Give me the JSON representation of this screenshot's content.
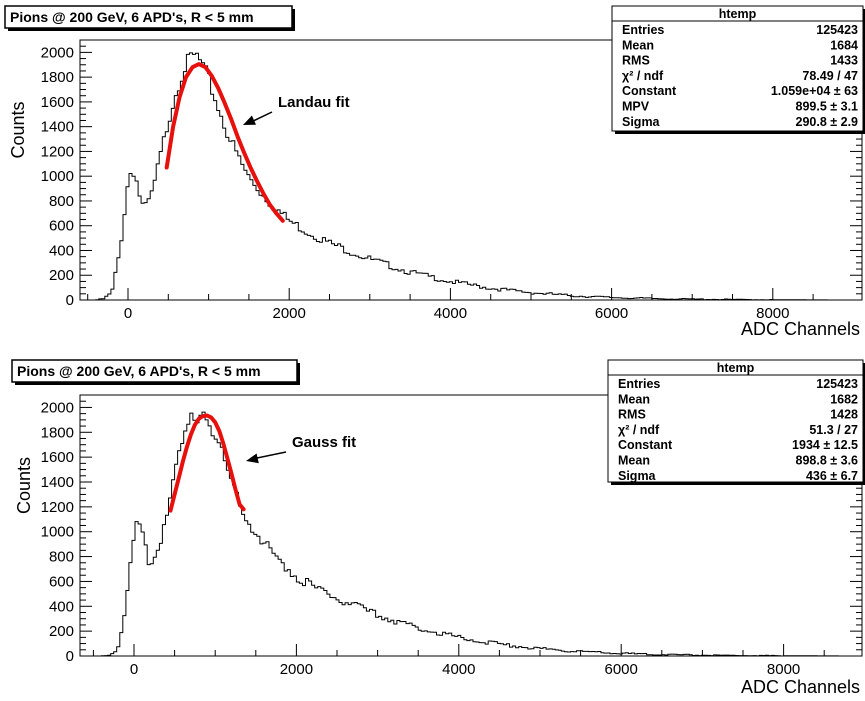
{
  "chart_data": [
    {
      "type": "histogram",
      "title": "Pions @ 200 GeV, 6 APD's, R < 5 mm",
      "xlabel": "ADC Channels",
      "ylabel": "Counts",
      "xlim": [
        -700,
        9000
      ],
      "ylim": [
        0,
        2100
      ],
      "xticks": [
        0,
        2000,
        4000,
        6000,
        8000
      ],
      "yticks": [
        0,
        200,
        400,
        600,
        800,
        1000,
        1200,
        1400,
        1600,
        1800,
        2000
      ],
      "grid": false,
      "histogram": {
        "x": [
          -400,
          -300,
          -200,
          -100,
          0,
          50,
          100,
          150,
          200,
          300,
          400,
          500,
          600,
          700,
          800,
          850,
          900,
          1000,
          1100,
          1200,
          1300,
          1400,
          1500,
          1700,
          1900,
          2000,
          2200,
          2500,
          3000,
          3500,
          4000,
          4500,
          5000,
          5500,
          6000,
          6500,
          7000,
          7500,
          8000,
          8500,
          8800
        ],
        "y": [
          0,
          10,
          60,
          400,
          950,
          1080,
          980,
          830,
          720,
          860,
          1150,
          1450,
          1700,
          1880,
          1960,
          1970,
          1920,
          1780,
          1590,
          1410,
          1250,
          1110,
          990,
          830,
          700,
          640,
          560,
          460,
          330,
          225,
          150,
          95,
          60,
          35,
          20,
          12,
          7,
          4,
          2,
          1,
          0
        ]
      },
      "fit": {
        "name": "Landau fit",
        "x": [
          480,
          560,
          640,
          720,
          800,
          880,
          960,
          1040,
          1120,
          1200,
          1280,
          1360,
          1440,
          1520,
          1600,
          1680,
          1760,
          1840,
          1920
        ],
        "y": [
          1070,
          1400,
          1640,
          1800,
          1880,
          1905,
          1880,
          1810,
          1710,
          1590,
          1460,
          1320,
          1190,
          1070,
          960,
          860,
          770,
          700,
          640
        ]
      },
      "annotation": "Landau fit",
      "stats": {
        "name": "htemp",
        "rows": [
          {
            "label": "Entries",
            "value": "125423"
          },
          {
            "label": "Mean",
            "value": "1684"
          },
          {
            "label": "RMS",
            "value": "1433"
          },
          {
            "label": "χ² / ndf",
            "value": "78.49 / 47"
          },
          {
            "label": "Constant",
            "value": "1.059e+04 ± 63"
          },
          {
            "label": "MPV",
            "value": "899.5 ± 3.1"
          },
          {
            "label": "Sigma",
            "value": "290.8 ± 2.9"
          }
        ]
      }
    },
    {
      "type": "histogram",
      "title": "Pions @ 200 GeV, 6 APD's, R < 5 mm",
      "xlabel": "ADC Channels",
      "ylabel": "Counts",
      "xlim": [
        -700,
        8800
      ],
      "ylim": [
        0,
        2100
      ],
      "xticks": [
        0,
        2000,
        4000,
        6000,
        8000
      ],
      "yticks": [
        0,
        200,
        400,
        600,
        800,
        1000,
        1200,
        1400,
        1600,
        1800,
        2000
      ],
      "grid": false,
      "histogram": {
        "x": [
          -400,
          -300,
          -200,
          -100,
          0,
          50,
          100,
          150,
          200,
          300,
          400,
          500,
          600,
          700,
          800,
          850,
          900,
          1000,
          1100,
          1200,
          1300,
          1400,
          1500,
          1700,
          1900,
          2000,
          2200,
          2500,
          3000,
          3500,
          4000,
          4500,
          5000,
          5500,
          6000,
          6500,
          7000,
          7500,
          8000,
          8500,
          8800
        ],
        "y": [
          0,
          10,
          60,
          400,
          950,
          1080,
          980,
          830,
          720,
          860,
          1150,
          1450,
          1700,
          1880,
          1960,
          1970,
          1920,
          1780,
          1590,
          1410,
          1250,
          1110,
          990,
          830,
          700,
          640,
          560,
          460,
          330,
          225,
          150,
          95,
          60,
          35,
          20,
          12,
          7,
          4,
          2,
          1,
          0
        ]
      },
      "fit": {
        "name": "Gauss fit",
        "x": [
          450,
          500,
          550,
          600,
          650,
          700,
          750,
          800,
          850,
          900,
          950,
          1000,
          1050,
          1100,
          1150,
          1200,
          1250,
          1300,
          1350
        ],
        "y": [
          1170,
          1300,
          1430,
          1560,
          1680,
          1780,
          1860,
          1910,
          1930,
          1935,
          1920,
          1880,
          1810,
          1710,
          1590,
          1470,
          1340,
          1220,
          1180
        ]
      },
      "annotation": "Gauss fit",
      "stats": {
        "name": "htemp",
        "rows": [
          {
            "label": "Entries",
            "value": "125423"
          },
          {
            "label": "Mean",
            "value": "1682"
          },
          {
            "label": "RMS",
            "value": "1428"
          },
          {
            "label": "χ² / ndf",
            "value": "51.3 / 27"
          },
          {
            "label": "Constant",
            "value": "1934 ± 12.5"
          },
          {
            "label": "Mean",
            "value": "898.8 ± 3.6"
          },
          {
            "label": "Sigma",
            "value": "436 ± 6.7"
          }
        ]
      }
    }
  ]
}
